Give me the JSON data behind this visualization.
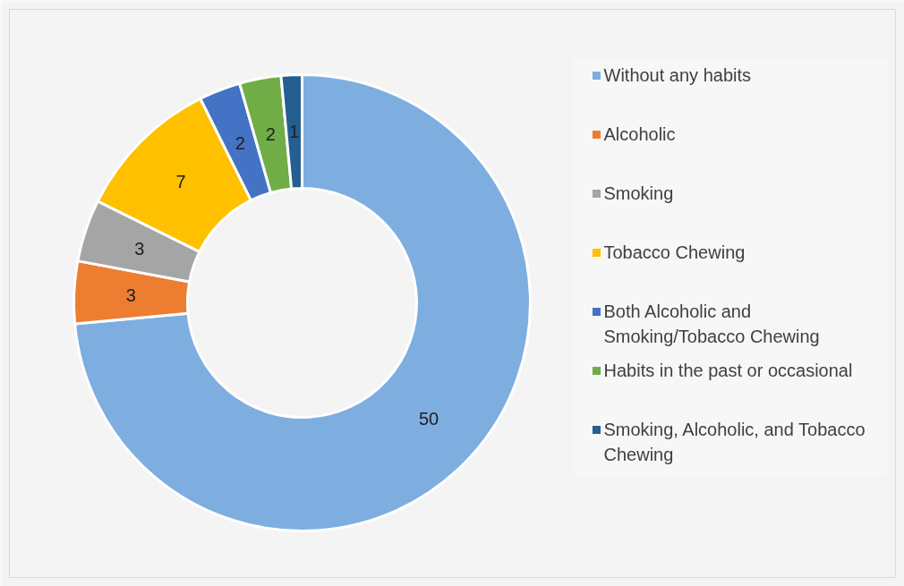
{
  "chart_data": {
    "type": "donut",
    "categories": [
      "Without any habits",
      "Alcoholic",
      "Smoking",
      "Tobacco Chewing",
      "Both Alcoholic and Smoking/Tobacco Chewing",
      "Habits in the past or occasional",
      "Smoking, Alcoholic, and Tobacco Chewing"
    ],
    "values": [
      50,
      3,
      3,
      7,
      2,
      2,
      1
    ],
    "colors": [
      "#7eaee0",
      "#ed7d31",
      "#a5a5a5",
      "#ffc000",
      "#4472c4",
      "#70ad47",
      "#255e91"
    ],
    "data_labels": true,
    "legend": "right"
  }
}
